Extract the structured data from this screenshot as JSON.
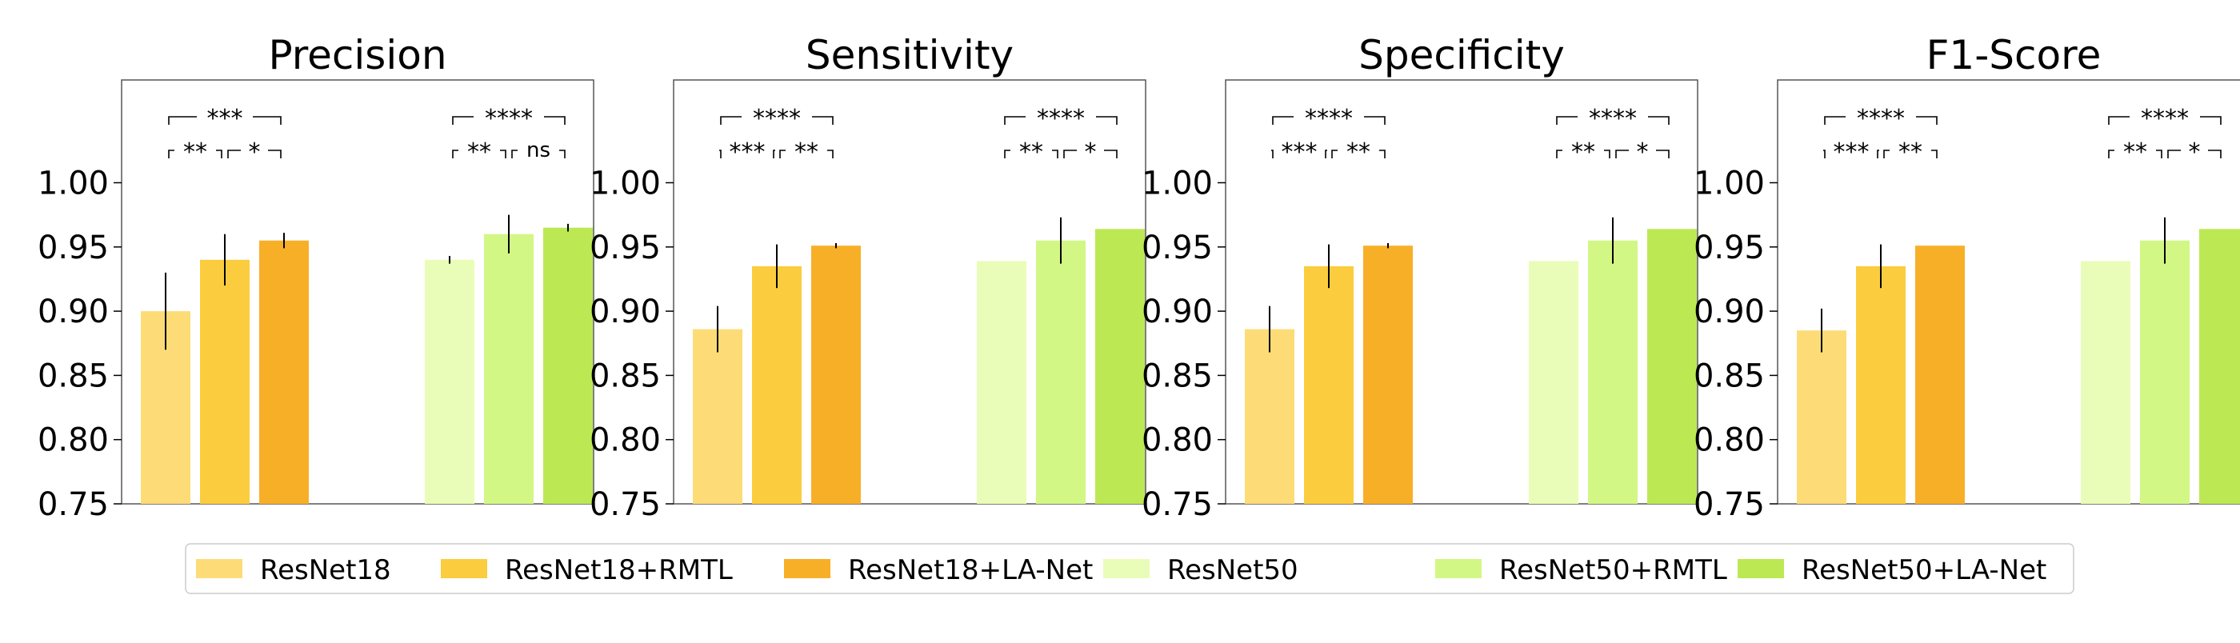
{
  "chart_data": {
    "type": "bar",
    "panels": [
      {
        "title": "Precision",
        "values": [
          0.9,
          0.94,
          0.955,
          0.94,
          0.96,
          0.965
        ],
        "errors": [
          0.03,
          0.02,
          0.006,
          0.003,
          0.015,
          0.003
        ],
        "significance": [
          {
            "group": 1,
            "left": "**",
            "right": "*",
            "top": "***"
          },
          {
            "group": 2,
            "left": "**",
            "right": "ns",
            "top": "****"
          }
        ]
      },
      {
        "title": "Sensitivity",
        "values": [
          0.886,
          0.935,
          0.951,
          0.939,
          0.955,
          0.964
        ],
        "errors": [
          0.018,
          0.017,
          0.002,
          0.0,
          0.018,
          0.0
        ],
        "significance": [
          {
            "group": 1,
            "left": "***",
            "right": "**",
            "top": "****"
          },
          {
            "group": 2,
            "left": "**",
            "right": "*",
            "top": "****"
          }
        ]
      },
      {
        "title": "Specificity",
        "values": [
          0.886,
          0.935,
          0.951,
          0.939,
          0.955,
          0.964
        ],
        "errors": [
          0.018,
          0.017,
          0.002,
          0.0,
          0.018,
          0.0
        ],
        "significance": [
          {
            "group": 1,
            "left": "***",
            "right": "**",
            "top": "****"
          },
          {
            "group": 2,
            "left": "**",
            "right": "*",
            "top": "****"
          }
        ]
      },
      {
        "title": "F1-Score",
        "values": [
          0.885,
          0.935,
          0.951,
          0.939,
          0.955,
          0.964
        ],
        "errors": [
          0.017,
          0.017,
          0.0,
          0.0,
          0.018,
          0.0
        ],
        "significance": [
          {
            "group": 1,
            "left": "***",
            "right": "**",
            "top": "****"
          },
          {
            "group": 2,
            "left": "**",
            "right": "*",
            "top": "****"
          }
        ]
      }
    ],
    "series": [
      {
        "name": "ResNet18",
        "color": "#FDDC78"
      },
      {
        "name": "ResNet18+RMTL",
        "color": "#FBCD3E"
      },
      {
        "name": "ResNet18+LA-Net",
        "color": "#F8AF28"
      },
      {
        "name": "ResNet50",
        "color": "#EAFDB8"
      },
      {
        "name": "ResNet50+RMTL",
        "color": "#D3F785"
      },
      {
        "name": "ResNet50+LA-Net",
        "color": "#BCE953"
      }
    ],
    "ylim": [
      0.75,
      1.08
    ],
    "yticks": [
      "1.00",
      "0.95",
      "0.90",
      "0.85",
      "0.80",
      "0.75"
    ],
    "ytick_values": [
      1.0,
      0.95,
      0.9,
      0.85,
      0.8,
      0.75
    ],
    "legend_position": "bottom",
    "grid": false
  }
}
